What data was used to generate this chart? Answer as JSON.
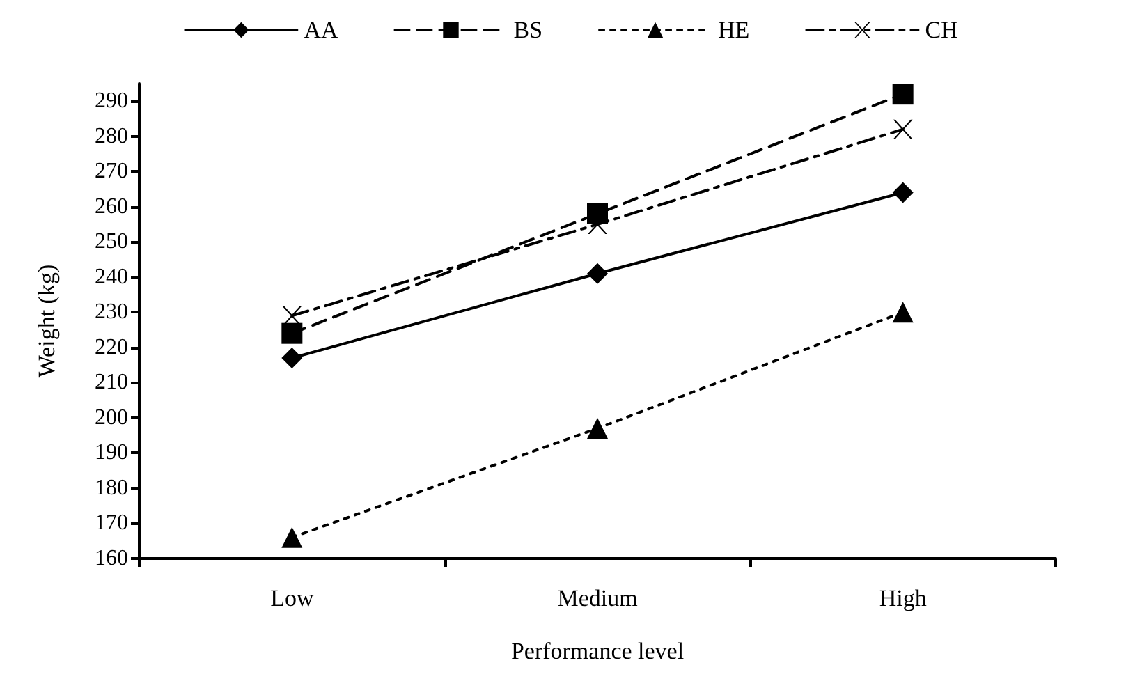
{
  "chart_data": {
    "type": "line",
    "xlabel": "Performance level",
    "ylabel": "Weight (kg)",
    "categories": [
      "Low",
      "Medium",
      "High"
    ],
    "series": [
      {
        "name": "AA",
        "color": "#000000",
        "marker": "diamond",
        "line_style": "solid",
        "values": [
          217,
          241,
          264
        ]
      },
      {
        "name": "BS",
        "color": "#000000",
        "marker": "square",
        "line_style": "dashed",
        "values": [
          224,
          258,
          292
        ]
      },
      {
        "name": "HE",
        "color": "#000000",
        "marker": "triangle",
        "line_style": "dotted",
        "values": [
          166,
          197,
          230
        ]
      },
      {
        "name": "CH",
        "color": "#000000",
        "marker": "cross",
        "line_style": "dashdot",
        "values": [
          229,
          255,
          282
        ]
      }
    ],
    "ylim": [
      160,
      295
    ],
    "yticks": [
      160,
      170,
      180,
      190,
      200,
      210,
      220,
      230,
      240,
      250,
      260,
      270,
      280,
      290
    ],
    "grid": false,
    "legend": "top"
  }
}
